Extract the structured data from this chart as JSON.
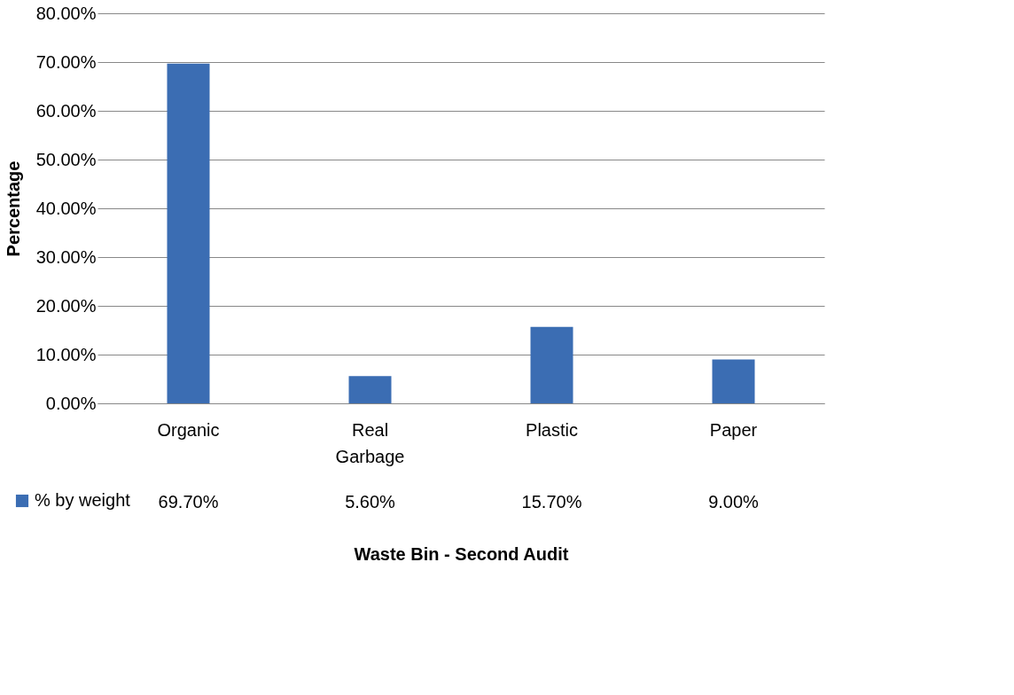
{
  "chart_data": {
    "type": "bar",
    "xlabel": "Waste Bin - Second Audit",
    "ylabel": "Percentage",
    "categories": [
      "Organic",
      "Real Garbage",
      "Plastic",
      "Paper"
    ],
    "series": [
      {
        "name": "% by weight",
        "color": "#3b6db3",
        "values": [
          69.7,
          5.6,
          15.7,
          9.0
        ],
        "value_labels": [
          "69.70%",
          "5.60%",
          "15.70%",
          "9.00%"
        ]
      }
    ],
    "ylim": [
      0,
      80
    ],
    "yticks": [
      {
        "value": 0,
        "label": "0.00%"
      },
      {
        "value": 10,
        "label": "10.00%"
      },
      {
        "value": 20,
        "label": "20.00%"
      },
      {
        "value": 30,
        "label": "30.00%"
      },
      {
        "value": 40,
        "label": "40.00%"
      },
      {
        "value": 50,
        "label": "50.00%"
      },
      {
        "value": 60,
        "label": "60.00%"
      },
      {
        "value": 70,
        "label": "70.00%"
      },
      {
        "value": 80,
        "label": "80.00%"
      }
    ],
    "grid": "y",
    "legend": "bottom left"
  }
}
